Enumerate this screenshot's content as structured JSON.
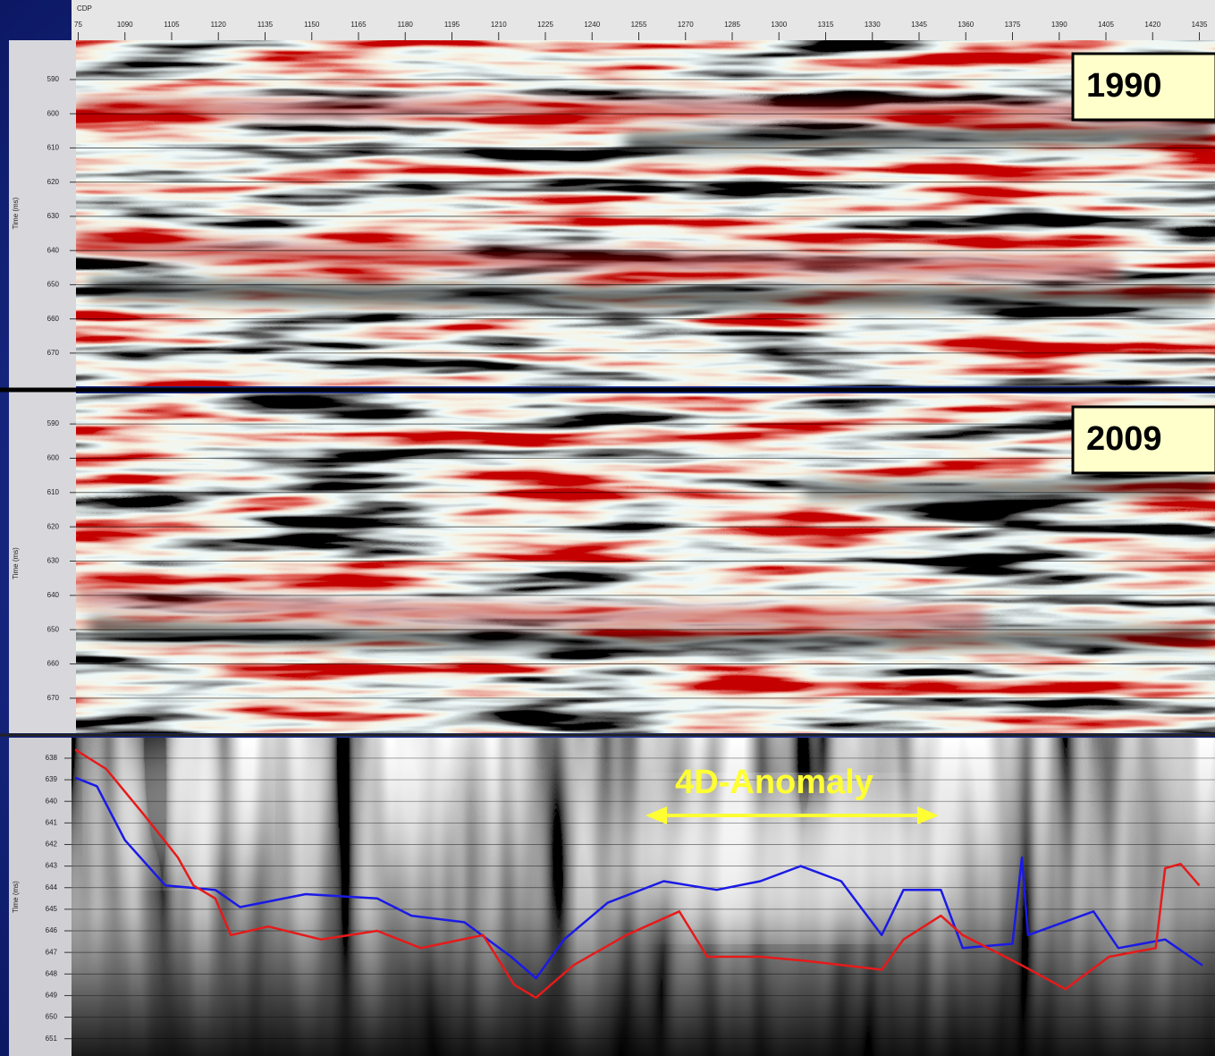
{
  "cdp_axis": {
    "label": "CDP",
    "lim": [
      1074,
      1436
    ],
    "ticks": [
      {
        "value": 1075,
        "label": "75"
      },
      1090,
      1105,
      1120,
      1135,
      1150,
      1165,
      1180,
      1195,
      1210,
      1225,
      1240,
      1255,
      1270,
      1285,
      1300,
      1315,
      1330,
      1345,
      1360,
      1375,
      1390,
      1405,
      1420,
      1435
    ]
  },
  "panels": [
    {
      "year": "1990",
      "time_label": "Time (ms)",
      "lim": [
        578.5,
        679.7
      ],
      "ticks": [
        590,
        600,
        610,
        620,
        630,
        640,
        650,
        660,
        670
      ]
    },
    {
      "year": "2009",
      "time_label": "Time (ms)",
      "lim": [
        581.1,
        680.2
      ],
      "ticks": [
        590,
        600,
        610,
        620,
        630,
        640,
        650,
        660,
        670
      ]
    }
  ],
  "difference_panel": {
    "time_label": "Time (ms)",
    "annotation": "4D-Anomaly",
    "lim": [
      637.05,
      651.8
    ],
    "ticks": [
      638,
      639,
      640,
      641,
      642,
      643,
      644,
      645,
      646,
      647,
      648,
      649,
      650,
      651
    ],
    "series": [
      {
        "color": "#1a1ae6",
        "x": [
          1074,
          1081,
          1090,
          1103,
          1119,
          1127,
          1148,
          1171,
          1182,
          1199,
          1214,
          1222,
          1231,
          1245,
          1263,
          1280,
          1294,
          1307,
          1320,
          1333,
          1340,
          1352,
          1359,
          1375,
          1378,
          1380,
          1401,
          1409,
          1424,
          1436
        ],
        "values": [
          638.9,
          639.3,
          641.8,
          643.9,
          644.1,
          644.9,
          644.3,
          644.5,
          645.3,
          645.6,
          647.2,
          648.2,
          646.4,
          644.7,
          643.7,
          644.1,
          643.7,
          643.0,
          643.7,
          646.2,
          644.1,
          644.1,
          646.8,
          646.6,
          642.6,
          646.2,
          645.1,
          646.8,
          646.4,
          647.6
        ]
      },
      {
        "color": "#e61a1a",
        "x": [
          1074,
          1084,
          1096,
          1107,
          1112,
          1119,
          1124,
          1136,
          1153,
          1171,
          1185,
          1205,
          1215,
          1222,
          1234,
          1251,
          1268,
          1277,
          1294,
          1309,
          1333,
          1340,
          1352,
          1359,
          1378,
          1392,
          1406,
          1421,
          1424,
          1429,
          1435
        ],
        "values": [
          637.6,
          638.5,
          640.6,
          642.6,
          643.9,
          644.5,
          646.2,
          645.8,
          646.4,
          646.0,
          646.8,
          646.2,
          648.5,
          649.1,
          647.6,
          646.2,
          645.1,
          647.2,
          647.2,
          647.4,
          647.8,
          646.4,
          645.3,
          646.2,
          647.6,
          648.7,
          647.2,
          646.8,
          643.1,
          642.9,
          643.9
        ]
      }
    ]
  }
}
